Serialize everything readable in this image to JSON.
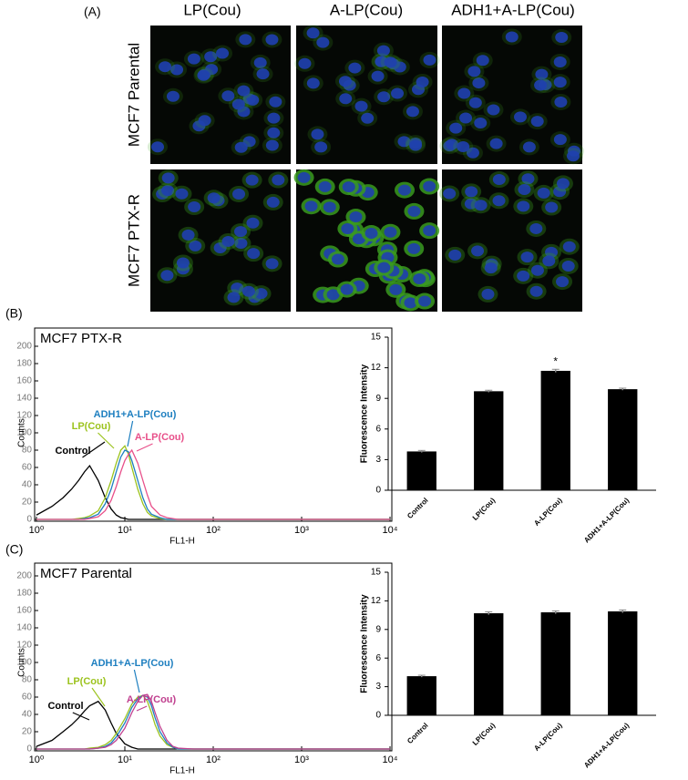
{
  "panel_a": {
    "label": "(A)",
    "columns": [
      "LP(Cou)",
      "A-LP(Cou)",
      "ADH1+A-LP(Cou)"
    ],
    "rows": [
      "MCF7 Parental",
      "MCF7 PTX-R"
    ]
  },
  "chart_data": [
    {
      "type": "line",
      "panel_label": "(B)",
      "title": "MCF7 PTX-R",
      "x_label": "FL1-H",
      "y_label": "Counts",
      "xscale": "log",
      "xlim": [
        1,
        10000
      ],
      "xticks": [
        {
          "value": 1,
          "label": "10⁰"
        },
        {
          "value": 10,
          "label": "10¹"
        },
        {
          "value": 100,
          "label": "10²"
        },
        {
          "value": 1000,
          "label": "10³"
        },
        {
          "value": 10000,
          "label": "10⁴"
        }
      ],
      "ylim": [
        0,
        200
      ],
      "yticks": [
        0,
        20,
        40,
        60,
        80,
        100,
        120,
        140,
        160,
        180,
        200
      ],
      "x": [
        1,
        1.5,
        2,
        2.5,
        3,
        3.5,
        4,
        5,
        6,
        7,
        8,
        9,
        10,
        11,
        12,
        14,
        16,
        18,
        20,
        25,
        30,
        40,
        60,
        100,
        1000,
        10000
      ],
      "series": [
        {
          "name": "Control",
          "color": "#000000",
          "values": [
            5,
            15,
            25,
            35,
            45,
            55,
            62,
            45,
            25,
            12,
            5,
            2,
            1,
            0,
            0,
            0,
            0,
            0,
            0,
            0,
            0,
            0,
            0,
            0,
            0,
            0
          ]
        },
        {
          "name": "LP(Cou)",
          "color": "#9cc31e",
          "values": [
            0,
            0,
            0,
            0,
            1,
            2,
            4,
            10,
            25,
            45,
            65,
            80,
            85,
            75,
            60,
            35,
            18,
            8,
            4,
            1,
            0,
            0,
            0,
            0,
            0,
            0
          ]
        },
        {
          "name": "ADH1+A-LP(Cou)",
          "color": "#1e7fc0",
          "values": [
            0,
            0,
            0,
            0,
            0,
            1,
            2,
            6,
            18,
            35,
            55,
            72,
            80,
            78,
            68,
            45,
            25,
            12,
            6,
            2,
            0,
            0,
            0,
            0,
            0,
            0
          ]
        },
        {
          "name": "A-LP(Cou)",
          "color": "#e8508a",
          "values": [
            0,
            0,
            0,
            0,
            0,
            0,
            1,
            3,
            10,
            22,
            38,
            55,
            68,
            75,
            80,
            65,
            45,
            28,
            15,
            5,
            2,
            0,
            0,
            0,
            0,
            0
          ]
        }
      ]
    },
    {
      "type": "bar",
      "y_label": "Fluorescence Intensity",
      "categories": [
        "Control",
        "LP(Cou)",
        "A-LP(Cou)",
        "ADH1+A-LP(Cou)"
      ],
      "values": [
        3.8,
        9.7,
        11.7,
        9.9
      ],
      "errors": [
        0.1,
        0.1,
        0.15,
        0.1
      ],
      "color": "#000000",
      "ylim": [
        0,
        15
      ],
      "yticks": [
        0,
        3,
        6,
        9,
        12,
        15
      ],
      "annotation": "*"
    },
    {
      "type": "line",
      "panel_label": "(C)",
      "title": "MCF7 Parental",
      "x_label": "FL1-H",
      "y_label": "Counts",
      "xscale": "log",
      "xlim": [
        1,
        10000
      ],
      "xticks": [
        {
          "value": 1,
          "label": "10⁰"
        },
        {
          "value": 10,
          "label": "10¹"
        },
        {
          "value": 100,
          "label": "10²"
        },
        {
          "value": 1000,
          "label": "10³"
        },
        {
          "value": 10000,
          "label": "10⁴"
        }
      ],
      "ylim": [
        0,
        200
      ],
      "yticks": [
        0,
        20,
        40,
        60,
        80,
        100,
        120,
        140,
        160,
        180,
        200
      ],
      "x": [
        1,
        1.5,
        2,
        2.5,
        3,
        3.5,
        4,
        5,
        6,
        7,
        8,
        10,
        12,
        14,
        16,
        18,
        20,
        22,
        25,
        30,
        35,
        40,
        60,
        100,
        1000,
        10000
      ],
      "series": [
        {
          "name": "Control",
          "color": "#000000",
          "values": [
            3,
            10,
            20,
            28,
            36,
            44,
            50,
            55,
            45,
            30,
            18,
            6,
            2,
            0,
            0,
            0,
            0,
            0,
            0,
            0,
            0,
            0,
            0,
            0,
            0,
            0
          ]
        },
        {
          "name": "LP(Cou)",
          "color": "#9cc31e",
          "values": [
            0,
            0,
            0,
            0,
            0,
            0,
            1,
            2,
            5,
            10,
            18,
            35,
            52,
            60,
            62,
            55,
            42,
            28,
            15,
            5,
            2,
            0,
            0,
            0,
            0,
            0
          ]
        },
        {
          "name": "ADH1+A-LP(Cou)",
          "color": "#1e7fc0",
          "values": [
            0,
            0,
            0,
            0,
            0,
            0,
            0,
            1,
            3,
            7,
            14,
            30,
            48,
            58,
            62,
            60,
            50,
            36,
            20,
            7,
            2,
            0,
            0,
            0,
            0,
            0
          ]
        },
        {
          "name": "A-LP(Cou)",
          "color": "#c0408f",
          "values": [
            0,
            0,
            0,
            0,
            0,
            0,
            0,
            1,
            2,
            5,
            10,
            24,
            42,
            55,
            62,
            63,
            55,
            42,
            26,
            10,
            3,
            1,
            0,
            0,
            0,
            0
          ]
        }
      ]
    },
    {
      "type": "bar",
      "y_label": "Fluorescence Intensity",
      "categories": [
        "Control",
        "LP(Cou)",
        "A-LP(Cou)",
        "ADH1+A-LP(Cou)"
      ],
      "values": [
        4.1,
        10.7,
        10.8,
        10.9
      ],
      "errors": [
        0.1,
        0.15,
        0.15,
        0.15
      ],
      "color": "#000000",
      "ylim": [
        0,
        15
      ],
      "yticks": [
        0,
        3,
        6,
        9,
        12,
        15
      ]
    }
  ]
}
